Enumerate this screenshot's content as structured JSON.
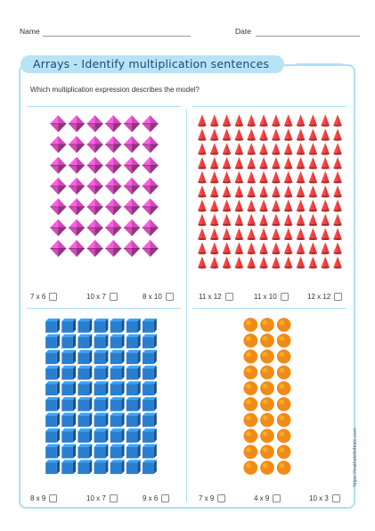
{
  "header": {
    "name_label": "Name",
    "date_label": "Date"
  },
  "title": "Arrays - Identify multiplication sentences",
  "question": "Which multiplication expression describes the model?",
  "panels": [
    {
      "model": {
        "shape": "diamond-icon",
        "rows": 7,
        "cols": 6,
        "color": "#d04bb8"
      },
      "options": [
        "7 x 6",
        "10 x 7",
        "8 x 10"
      ]
    },
    {
      "model": {
        "shape": "cone-icon",
        "rows": 11,
        "cols": 12,
        "color": "#e23a3a"
      },
      "options": [
        "11 x 12",
        "11 x 10",
        "12 x 12"
      ]
    },
    {
      "model": {
        "shape": "cube-icon",
        "rows": 10,
        "cols": 7,
        "color": "#2a7ed0"
      },
      "options": [
        "8 x 9",
        "10 x 7",
        "9 x 6"
      ]
    },
    {
      "model": {
        "shape": "orange-ball-icon",
        "rows": 10,
        "cols": 3,
        "color": "#f28a1a"
      },
      "options": [
        "7 x 9",
        "4 x 9",
        "10 x 3"
      ]
    }
  ],
  "footer": {
    "url": "https://mathskills4kids.com"
  }
}
